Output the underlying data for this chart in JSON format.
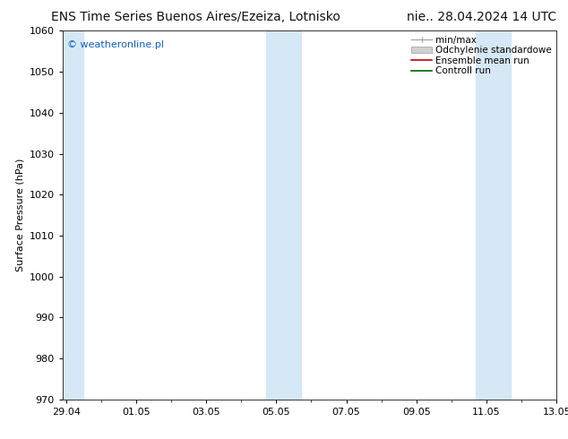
{
  "title_left": "ENS Time Series Buenos Aires/Ezeiza, Lotnisko",
  "title_right": "nie.. 28.04.2024 14 UTC",
  "ylabel": "Surface Pressure (hPa)",
  "ylim": [
    970,
    1060
  ],
  "yticks": [
    970,
    980,
    990,
    1000,
    1010,
    1020,
    1030,
    1040,
    1050,
    1060
  ],
  "x_tick_labels": [
    "29.04",
    "01.05",
    "03.05",
    "05.05",
    "07.05",
    "09.05",
    "11.05",
    "13.05"
  ],
  "x_tick_positions": [
    0,
    2,
    4,
    6,
    8,
    10,
    12,
    14
  ],
  "x_total": 14,
  "shaded_bands": [
    {
      "x_start": -0.1,
      "x_end": 0.5
    },
    {
      "x_start": 5.7,
      "x_end": 6.7
    },
    {
      "x_start": 11.7,
      "x_end": 12.7
    }
  ],
  "shaded_color": "#d6e8f5",
  "watermark_text": "© weatheronline.pl",
  "watermark_color": "#1060c0",
  "legend_items": [
    {
      "label": "min/max",
      "color": "#aaaaaa",
      "style": "errorbar"
    },
    {
      "label": "Odchylenie standardowe",
      "color": "#cccccc",
      "style": "rect"
    },
    {
      "label": "Ensemble mean run",
      "color": "#cc0000",
      "style": "line"
    },
    {
      "label": "Controll run",
      "color": "#006600",
      "style": "line"
    }
  ],
  "bg_color": "#ffffff",
  "title_fontsize": 10,
  "axis_label_fontsize": 8,
  "tick_fontsize": 8,
  "watermark_fontsize": 8,
  "legend_fontsize": 7.5
}
